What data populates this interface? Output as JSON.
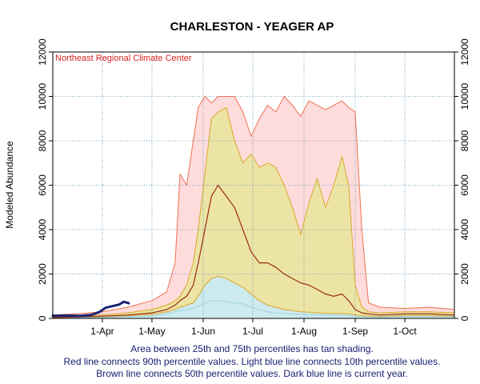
{
  "chart_data": {
    "type": "area",
    "title": "CHARLESTON - YEAGER AP",
    "source_label": "Northeast Regional Climate Center",
    "ylabel": "Modeled Abundance",
    "xlabel": "",
    "ylim": [
      0,
      12000
    ],
    "yticks": [
      0,
      2000,
      4000,
      6000,
      8000,
      10000,
      12000
    ],
    "xlim": [
      "2024-03-02",
      "2024-10-31"
    ],
    "xticks": [
      {
        "date": "2024-04-01",
        "label": "1-Apr"
      },
      {
        "date": "2024-05-01",
        "label": "1-May"
      },
      {
        "date": "2024-06-01",
        "label": "1-Jun"
      },
      {
        "date": "2024-07-01",
        "label": "1-Jul"
      },
      {
        "date": "2024-08-01",
        "label": "1-Aug"
      },
      {
        "date": "2024-09-01",
        "label": "1-Sep"
      },
      {
        "date": "2024-10-01",
        "label": "1-Oct"
      }
    ],
    "grid": true,
    "colors": {
      "p90_line": "#f07050",
      "p90_fill": "#ffdcdc",
      "iqr_fill": "#ece4a4",
      "iqr_line": "#d8a82a",
      "p10_fill": "#cdeaee",
      "p10_line": "#9fd3de",
      "p50_line": "#9a2a12",
      "current_line": "#1a2370",
      "source_text": "#d82020",
      "note_text": "#1a2070",
      "grid": "#4f8fb8"
    },
    "dates": [
      "2024-03-02",
      "2024-03-16",
      "2024-04-01",
      "2024-04-16",
      "2024-05-01",
      "2024-05-10",
      "2024-05-15",
      "2024-05-18",
      "2024-05-22",
      "2024-05-26",
      "2024-05-29",
      "2024-06-02",
      "2024-06-06",
      "2024-06-10",
      "2024-06-15",
      "2024-06-20",
      "2024-06-25",
      "2024-06-30",
      "2024-07-05",
      "2024-07-10",
      "2024-07-15",
      "2024-07-20",
      "2024-07-25",
      "2024-07-30",
      "2024-08-04",
      "2024-08-09",
      "2024-08-14",
      "2024-08-19",
      "2024-08-24",
      "2024-08-28",
      "2024-09-01",
      "2024-09-05",
      "2024-09-09",
      "2024-09-16",
      "2024-10-01",
      "2024-10-16",
      "2024-10-31"
    ],
    "series": [
      {
        "name": "90th percentile",
        "values": [
          150,
          200,
          300,
          500,
          800,
          1200,
          2500,
          6500,
          6000,
          8000,
          9500,
          10000,
          9700,
          10000,
          10000,
          10000,
          9300,
          8200,
          9000,
          9600,
          9300,
          10000,
          9600,
          9100,
          9800,
          9600,
          9400,
          9600,
          9800,
          9500,
          9300,
          4000,
          700,
          500,
          450,
          500,
          400
        ]
      },
      {
        "name": "75th percentile",
        "values": [
          60,
          100,
          150,
          250,
          400,
          600,
          800,
          1000,
          1500,
          2500,
          4000,
          6500,
          9000,
          9300,
          9500,
          8000,
          7000,
          7400,
          6800,
          7000,
          6800,
          6000,
          5000,
          3800,
          5200,
          6300,
          5000,
          6000,
          7300,
          6000,
          1500,
          500,
          300,
          250,
          300,
          300,
          250
        ]
      },
      {
        "name": "50th percentile",
        "values": [
          40,
          60,
          100,
          150,
          250,
          400,
          600,
          800,
          1000,
          1500,
          2500,
          4000,
          5500,
          6000,
          5500,
          5000,
          4000,
          3000,
          2500,
          2500,
          2300,
          2000,
          1800,
          1600,
          1500,
          1300,
          1100,
          1000,
          1100,
          800,
          400,
          250,
          200,
          150,
          200,
          200,
          150
        ]
      },
      {
        "name": "25th percentile",
        "values": [
          30,
          50,
          80,
          120,
          180,
          300,
          400,
          500,
          600,
          700,
          1000,
          1500,
          1800,
          1900,
          1800,
          1600,
          1400,
          1100,
          800,
          600,
          500,
          400,
          350,
          300,
          280,
          250,
          230,
          220,
          220,
          200,
          150,
          120,
          100,
          90,
          120,
          120,
          100
        ]
      },
      {
        "name": "10th percentile",
        "values": [
          20,
          30,
          50,
          80,
          120,
          200,
          300,
          350,
          400,
          450,
          550,
          700,
          800,
          800,
          750,
          700,
          650,
          500,
          400,
          300,
          250,
          220,
          200,
          180,
          170,
          160,
          150,
          150,
          140,
          130,
          100,
          80,
          70,
          60,
          80,
          80,
          70
        ]
      }
    ],
    "current_year": {
      "name": "current year",
      "dates": [
        "2024-03-02",
        "2024-03-10",
        "2024-03-18",
        "2024-03-25",
        "2024-03-30",
        "2024-04-03",
        "2024-04-07",
        "2024-04-11",
        "2024-04-14",
        "2024-04-17"
      ],
      "values": [
        120,
        130,
        110,
        150,
        280,
        480,
        550,
        620,
        750,
        680
      ]
    },
    "notes": [
      "Area between 25th and 75th percentiles has tan shading.",
      "Red line connects 90th percentile values. Light blue line connects 10th percentile values.",
      "Brown line connects 50th percentile values. Dark blue line is current year."
    ]
  }
}
